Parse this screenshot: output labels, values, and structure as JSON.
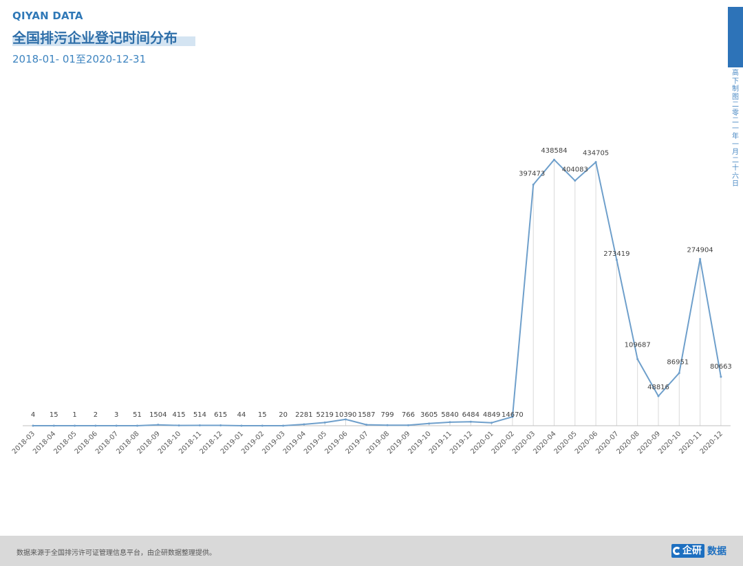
{
  "header": {
    "brand": "QIYAN DATA",
    "title": "全国排污企业登记时间分布",
    "subtitle": "2018-01- 01至2020-12-31"
  },
  "side_note": "高下制图 二零二一年一月二十六日",
  "footer": {
    "source_note": "数据来源于全国排污许可证管理信息平台，由企研数据整理提供。",
    "logo_text_a": "企研",
    "logo_text_b": "数据"
  },
  "colors": {
    "line": "#6e9fcb",
    "brand": "#2f78b7",
    "title_band": "#d4e4f2",
    "side_bar": "#2d73b8",
    "gridline": "#d9d9d9",
    "footer_bg": "#d9d9d9",
    "logo": "#1d6fc0"
  },
  "chart_data": {
    "type": "line",
    "title": "",
    "xlabel": "",
    "ylabel": "",
    "categories": [
      "2018-03",
      "2018-04",
      "2018-05",
      "2018-06",
      "2018-07",
      "2018-08",
      "2018-09",
      "2018-10",
      "2018-11",
      "2018-12",
      "2019-01",
      "2019-02",
      "2019-03",
      "2019-04",
      "2019-05",
      "2019-06",
      "2019-07",
      "2019-08",
      "2019-09",
      "2019-10",
      "2019-11",
      "2019-12",
      "2020-01",
      "2020-02",
      "2020-03",
      "2020-04",
      "2020-05",
      "2020-06",
      "2020-07",
      "2020-08",
      "2020-09",
      "2020-10",
      "2020-11",
      "2020-12"
    ],
    "values": [
      4,
      15,
      1,
      2,
      3,
      51,
      1504,
      415,
      514,
      615,
      44,
      15,
      20,
      2281,
      5219,
      10390,
      1587,
      799,
      766,
      3605,
      5840,
      6484,
      4849,
      14670,
      397473,
      438584,
      404083,
      434705,
      273419,
      109687,
      48816,
      86951,
      274904,
      80663
    ],
    "value_labels": [
      "4",
      "15",
      "1",
      "2",
      "3",
      "51",
      "1504",
      "415",
      "514",
      "615",
      "44",
      "15",
      "20",
      "2281",
      "5219",
      "10390",
      "1587",
      "799",
      "766",
      "3605",
      "5840",
      "6484",
      "4849",
      "14670",
      "397473",
      "438584",
      "404083",
      "434705",
      "273419",
      "109687",
      "48816",
      "86951",
      "274904",
      "80663"
    ],
    "ylim": [
      0,
      440000
    ],
    "drop_lines": true,
    "legend": "none",
    "grid": false
  }
}
